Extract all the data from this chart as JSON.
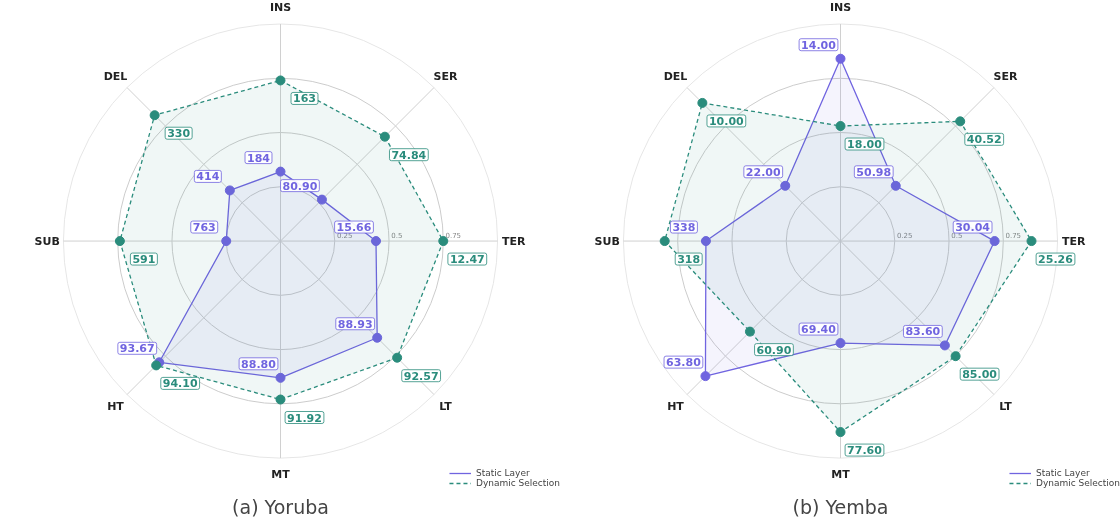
{
  "chart_data": [
    {
      "type": "radar",
      "title": "(a) Yoruba",
      "categories": [
        "INS",
        "SER",
        "TER",
        "LT",
        "MT",
        "HT",
        "SUB",
        "DEL"
      ],
      "ylim": [
        0,
        1
      ],
      "yticks": [
        0.25,
        0.5,
        0.75
      ],
      "grid": true,
      "legend": "bottom right",
      "marker": "circle",
      "series": [
        {
          "name": "Static Layer",
          "color": "#7064e0",
          "line_style": "solid",
          "values": [
            0.32,
            0.27,
            0.44,
            0.63,
            0.63,
            0.79,
            0.25,
            0.33
          ]
        },
        {
          "name": "Dynamic Selection",
          "color": "#2a8c7c",
          "line_style": "dashed",
          "values": [
            0.74,
            0.68,
            0.75,
            0.76,
            0.73,
            0.81,
            0.74,
            0.82
          ]
        }
      ],
      "annotations": [
        "184",
        "80.90",
        "15.66",
        "88.93",
        "88.80",
        "93.67",
        "763",
        "414",
        "163",
        "74.84",
        "12.47",
        "92.57",
        "91.92",
        "94.10",
        "591",
        "330"
      ]
    },
    {
      "type": "radar",
      "title": "(b) Yemba",
      "categories": [
        "INS",
        "SER",
        "TER",
        "LT",
        "MT",
        "HT",
        "SUB",
        "DEL"
      ],
      "ylim": [
        0,
        1
      ],
      "yticks": [
        0.25,
        0.5,
        0.75
      ],
      "grid": true,
      "legend": "bottom right",
      "marker": "circle",
      "series": [
        {
          "name": "Static Layer",
          "color": "#7064e0",
          "line_style": "solid",
          "values": [
            0.84,
            0.36,
            0.71,
            0.68,
            0.47,
            0.88,
            0.62,
            0.36
          ]
        },
        {
          "name": "Dynamic Selection",
          "color": "#2a8c7c",
          "line_style": "dashed",
          "values": [
            0.53,
            0.78,
            0.88,
            0.75,
            0.88,
            0.59,
            0.81,
            0.9
          ]
        }
      ],
      "annotations": [
        "14.00",
        "50.98",
        "30.04",
        "83.60",
        "69.40",
        "63.80",
        "338",
        "22.00",
        "18.00",
        "40.52",
        "25.26",
        "85.00",
        "77.60",
        "60.90",
        "318",
        "10.00"
      ]
    }
  ]
}
